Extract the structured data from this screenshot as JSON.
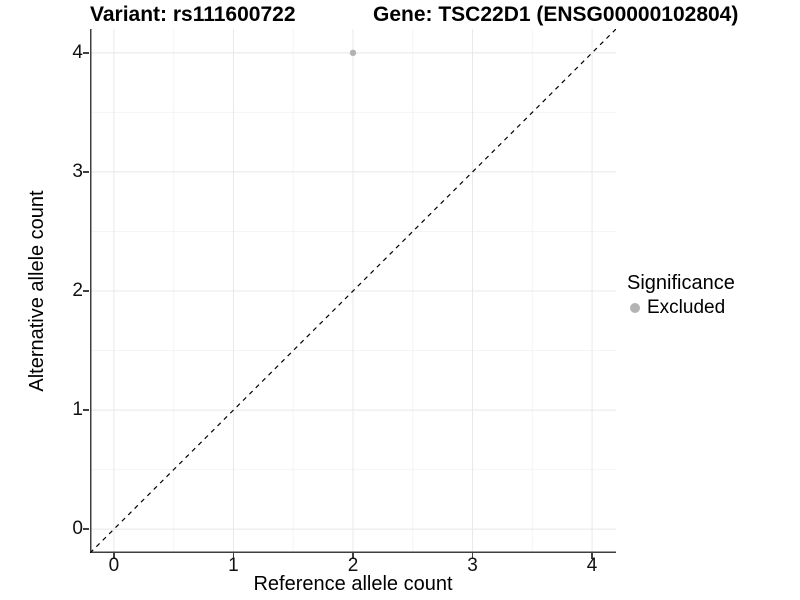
{
  "titles": {
    "variant": "Variant: rs111600722",
    "gene": "Gene: TSC22D1 (ENSG00000102804)"
  },
  "axes": {
    "x": {
      "label": "Reference allele count",
      "ticks": [
        "0",
        "1",
        "2",
        "3",
        "4"
      ]
    },
    "y": {
      "label": "Alternative allele count",
      "ticks": [
        "0",
        "1",
        "2",
        "3",
        "4"
      ]
    }
  },
  "legend": {
    "title": "Significance",
    "items": [
      {
        "label": "Excluded",
        "color": "#b3b3b3"
      }
    ]
  },
  "colors": {
    "point": "#b3b3b3",
    "axis_line": "#3f3f3f",
    "grid_major": "#e8e8e8",
    "grid_minor": "#f4f4f4",
    "identity_line": "#000000"
  },
  "chart_data": {
    "type": "scatter",
    "title": "Variant: rs111600722 | Gene: TSC22D1 (ENSG00000102804)",
    "xlabel": "Reference allele count",
    "ylabel": "Alternative allele count",
    "xlim": [
      -0.2,
      4.2
    ],
    "ylim": [
      -0.2,
      4.2
    ],
    "x_ticks": [
      0,
      1,
      2,
      3,
      4
    ],
    "y_ticks": [
      0,
      1,
      2,
      3,
      4
    ],
    "minor_grid_step": 0.5,
    "grid": "major and minor gridlines, light gray on white panel",
    "legend_position": "right-middle",
    "series": [
      {
        "name": "Excluded",
        "color": "#b3b3b3",
        "points": [
          {
            "x": 2,
            "y": 4
          }
        ]
      }
    ],
    "identity_line": {
      "style": "dashed",
      "color": "#000000",
      "from": [
        -0.2,
        -0.2
      ],
      "to": [
        4.2,
        4.2
      ]
    }
  }
}
